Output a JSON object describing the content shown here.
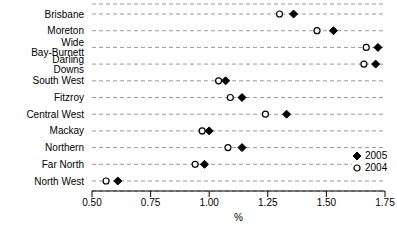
{
  "chart_data": {
    "type": "scatter",
    "orientation": "horizontal",
    "x_label": "%",
    "categories": [
      "Brisbane",
      "Moreton",
      "Wide Bay-Burnett",
      "Darling Downs",
      "South West",
      "Fitzroy",
      "Central West",
      "Mackay",
      "Northern",
      "Far North",
      "North West"
    ],
    "series": [
      {
        "name": "2005",
        "color": "#000000",
        "marker": "diamond",
        "values": [
          1.36,
          1.53,
          1.72,
          1.71,
          1.07,
          1.14,
          1.33,
          1.0,
          1.14,
          0.98,
          0.61
        ]
      },
      {
        "name": "2004",
        "color": "#000000",
        "marker": "circle",
        "values": [
          1.3,
          1.46,
          1.67,
          1.66,
          1.04,
          1.09,
          1.24,
          0.97,
          1.08,
          0.94,
          0.56
        ]
      }
    ],
    "xlim": [
      0.5,
      1.75
    ],
    "xticks": [
      {
        "value": 0.5,
        "label": "0.50"
      },
      {
        "value": 0.75,
        "label": "0.75"
      },
      {
        "value": 1.0,
        "label": "1.00"
      },
      {
        "value": 1.25,
        "label": "1.25"
      },
      {
        "value": 1.5,
        "label": "1.50"
      },
      {
        "value": 1.75,
        "label": "1.75"
      }
    ],
    "grid": true,
    "legend": "lower right"
  }
}
